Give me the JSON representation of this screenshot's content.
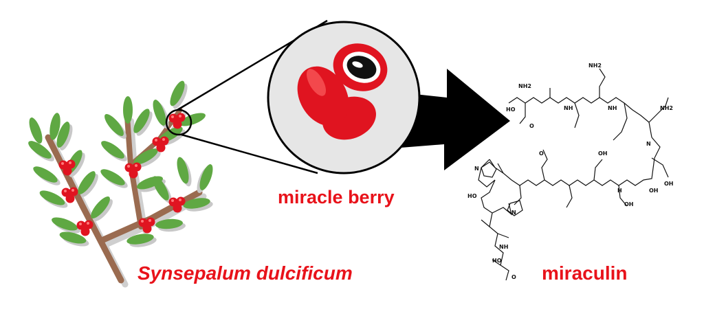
{
  "labels": {
    "berry": "miracle berry",
    "species": "Synsepalum dulcificum",
    "protein": "miraculin"
  },
  "colors": {
    "label": "#e8121a",
    "leaf": "#5fa843",
    "leaf_shadow": "#c8c8c8",
    "branch": "#9a6b50",
    "berry": "#e01420",
    "arrow": "#000000",
    "lens_fill": "#e6e6e6"
  },
  "icons": [
    "branch-illustration",
    "magnifier-lens",
    "berry-closeup",
    "arrow-right",
    "molecule-structure"
  ],
  "molecule_atoms": {
    "nh2": "NH2",
    "oh": "OH",
    "o": "O",
    "n": "N",
    "h": "H",
    "nh": "NH",
    "ho": "HO"
  }
}
